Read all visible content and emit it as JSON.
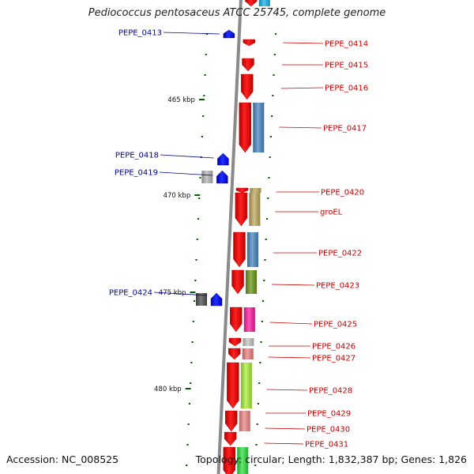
{
  "map": {
    "title": "Pediococcus pentosaceus ATCC 25745, complete genome",
    "accession_text": "Accession: NC_008525",
    "summary_text": "Topology: circular; Length: 1,832,387 bp; Genes: 1,826"
  },
  "scale": {
    "ticks": [
      {
        "label": "465 kbp"
      },
      {
        "label": "470 kbp"
      },
      {
        "label": "475 kbp"
      },
      {
        "label": "480 kbp"
      }
    ]
  },
  "genes": {
    "reverse_strand": [
      {
        "label": "PEPE_0413"
      },
      {
        "label": "PEPE_0418"
      },
      {
        "label": "PEPE_0419"
      },
      {
        "label": "PEPE_0424"
      }
    ],
    "forward_strand": [
      {
        "label": "PEPE_0414"
      },
      {
        "label": "PEPE_0415"
      },
      {
        "label": "PEPE_0416"
      },
      {
        "label": "PEPE_0417"
      },
      {
        "label": "PEPE_0420"
      },
      {
        "label": "groEL"
      },
      {
        "label": "PEPE_0422"
      },
      {
        "label": "PEPE_0423"
      },
      {
        "label": "PEPE_0425"
      },
      {
        "label": "PEPE_0426"
      },
      {
        "label": "PEPE_0427"
      },
      {
        "label": "PEPE_0428"
      },
      {
        "label": "PEPE_0429"
      },
      {
        "label": "PEPE_0430"
      },
      {
        "label": "PEPE_0431"
      }
    ]
  },
  "colors": {
    "backbone": "#8a8a8a",
    "forward_gene": "#ff0000",
    "forward_label": "#cc0000",
    "reverse_gene": "#0000ff",
    "reverse_label": "#000099",
    "tick": "#006600"
  }
}
